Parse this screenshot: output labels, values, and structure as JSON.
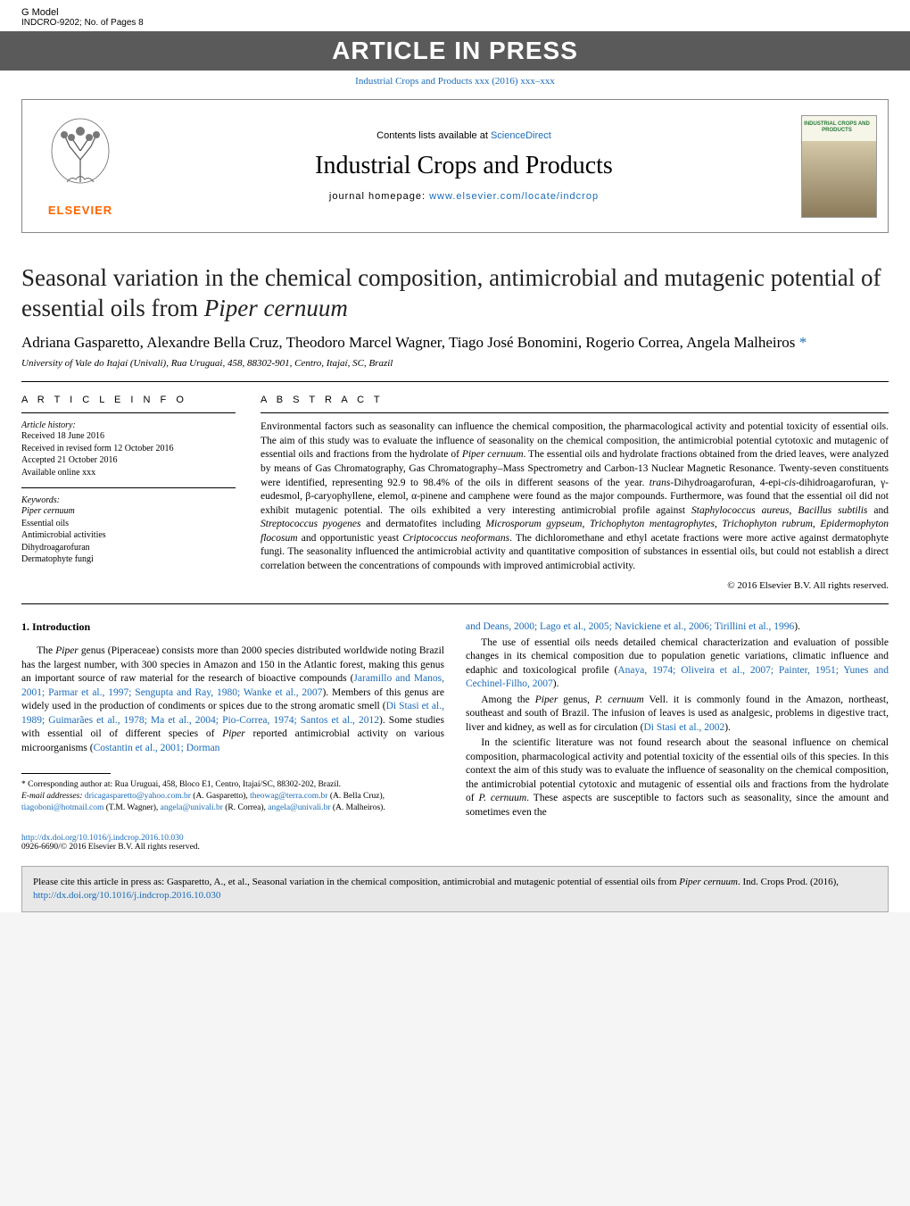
{
  "topbar": {
    "g_model": "G Model",
    "article_code": "INDCRO-9202; No. of Pages 8",
    "journal_ref": "Industrial Crops and Products xxx (2016) xxx–xxx"
  },
  "press_banner": "ARTICLE IN PRESS",
  "header": {
    "contents_prefix": "Contents lists available at ",
    "sciencedirect": "ScienceDirect",
    "journal_title": "Industrial Crops and Products",
    "homepage_prefix": "journal homepage: ",
    "homepage_url": "www.elsevier.com/locate/indcrop",
    "elsevier": "ELSEVIER",
    "cover_label": "INDUSTRIAL CROPS AND PRODUCTS"
  },
  "title": "Seasonal variation in the chemical composition, antimicrobial and mutagenic potential of essential oils from Piper cernuum",
  "title_italic": "Piper cernuum",
  "authors": "Adriana Gasparetto, Alexandre Bella Cruz, Theodoro Marcel Wagner, Tiago José Bonomini, Rogerio Correa, Angela Malheiros",
  "affiliation": "University of Vale do Itajaí (Univali), Rua Uruguai, 458, 88302-901, Centro, Itajaí, SC, Brazil",
  "article_info": {
    "heading": "A R T I C L E   I N F O",
    "history_label": "Article history:",
    "history": [
      "Received 18 June 2016",
      "Received in revised form 12 October 2016",
      "Accepted 21 October 2016",
      "Available online xxx"
    ],
    "keywords_label": "Keywords:",
    "keywords": [
      {
        "text": "Piper cernuum",
        "italic": true
      },
      {
        "text": "Essential oils",
        "italic": false
      },
      {
        "text": "Antimicrobial activities",
        "italic": false
      },
      {
        "text": "Dihydroagarofuran",
        "italic": false
      },
      {
        "text": "Dermatophyte fungi",
        "italic": false
      }
    ]
  },
  "abstract": {
    "heading": "A B S T R A C T",
    "text_parts": [
      {
        "t": "Environmental factors such as seasonality can influence the chemical composition, the pharmacological activity and potential toxicity of essential oils. The aim of this study was to evaluate the influence of seasonality on the chemical composition, the antimicrobial potential cytotoxic and mutagenic of essential oils and fractions from the hydrolate of ",
        "i": false
      },
      {
        "t": "Piper cernuum",
        "i": true
      },
      {
        "t": ". The essential oils and hydrolate fractions obtained from the dried leaves, were analyzed by means of Gas Chromatography, Gas Chromatography–Mass Spectrometry and Carbon-13 Nuclear Magnetic Resonance. Twenty-seven constituents were identified, representing 92.9 to 98.4% of the oils in different seasons of the year. ",
        "i": false
      },
      {
        "t": "trans",
        "i": true
      },
      {
        "t": "-Dihydroagarofuran, 4-epi-",
        "i": false
      },
      {
        "t": "cis",
        "i": true
      },
      {
        "t": "-dihidroagarofuran, γ-eudesmol, β-caryophyllene, elemol, α-pinene and camphene were found as the major compounds. Furthermore, was found that the essential oil did not exhibit mutagenic potential. The oils exhibited a very interesting antimicrobial profile against ",
        "i": false
      },
      {
        "t": "Staphylococcus aureus",
        "i": true
      },
      {
        "t": ", ",
        "i": false
      },
      {
        "t": "Bacillus subtilis",
        "i": true
      },
      {
        "t": " and ",
        "i": false
      },
      {
        "t": "Streptococcus pyogenes",
        "i": true
      },
      {
        "t": " and dermatofites including ",
        "i": false
      },
      {
        "t": "Microsporum gypseum",
        "i": true
      },
      {
        "t": ", ",
        "i": false
      },
      {
        "t": "Trichophyton mentagrophytes",
        "i": true
      },
      {
        "t": ", ",
        "i": false
      },
      {
        "t": "Trichophyton rubrum",
        "i": true
      },
      {
        "t": ", ",
        "i": false
      },
      {
        "t": "Epidermophyton flocosum",
        "i": true
      },
      {
        "t": " and opportunistic yeast ",
        "i": false
      },
      {
        "t": "Criptococcus neoformans",
        "i": true
      },
      {
        "t": ". The dichloromethane and ethyl acetate fractions were more active against dermatophyte fungi. The seasonality influenced the antimicrobial activity and quantitative composition of substances in essential oils, but could not establish a direct correlation between the concentrations of compounds with improved antimicrobial activity.",
        "i": false
      }
    ],
    "copyright": "© 2016 Elsevier B.V. All rights reserved."
  },
  "body": {
    "intro_heading": "1.  Introduction",
    "left_paras": [
      [
        {
          "t": "The ",
          "i": false,
          "l": false
        },
        {
          "t": "Piper",
          "i": true,
          "l": false
        },
        {
          "t": " genus (Piperaceae) consists more than 2000 species distributed worldwide noting Brazil has the largest number, with 300 species in Amazon and 150 in the Atlantic forest, making this genus an important source of raw material for the research of bioactive compounds (",
          "i": false,
          "l": false
        },
        {
          "t": "Jaramillo and Manos, 2001; Parmar et al., 1997; Sengupta and Ray, 1980; Wanke et al., 2007",
          "i": false,
          "l": true
        },
        {
          "t": "). Members of this genus are widely used in the production of condiments or spices due to the strong aromatic smell (",
          "i": false,
          "l": false
        },
        {
          "t": "Di Stasi et al., 1989; Guimarães et al., 1978; Ma et al., 2004; Pio-Correa, 1974; Santos et al., 2012",
          "i": false,
          "l": true
        },
        {
          "t": "). Some studies with essential oil of different species of ",
          "i": false,
          "l": false
        },
        {
          "t": "Piper",
          "i": true,
          "l": false
        },
        {
          "t": " reported antimicrobial activity on various microorganisms (",
          "i": false,
          "l": false
        },
        {
          "t": "Costantin et al., 2001; Dorman",
          "i": false,
          "l": true
        }
      ]
    ],
    "right_paras": [
      [
        {
          "t": "and Deans, 2000; Lago et al., 2005; Navickiene et al., 2006; Tirillini et al., 1996",
          "i": false,
          "l": true
        },
        {
          "t": ").",
          "i": false,
          "l": false
        }
      ],
      [
        {
          "t": "The use of essential oils needs detailed chemical characterization and evaluation of possible changes in its chemical composition due to population genetic variations, climatic influence and edaphic and toxicological profile (",
          "i": false,
          "l": false
        },
        {
          "t": "Anaya, 1974; Oliveira et al., 2007; Painter, 1951; Yunes and Cechinel-Filho, 2007",
          "i": false,
          "l": true
        },
        {
          "t": ").",
          "i": false,
          "l": false
        }
      ],
      [
        {
          "t": "Among the ",
          "i": false,
          "l": false
        },
        {
          "t": "Piper",
          "i": true,
          "l": false
        },
        {
          "t": " genus, ",
          "i": false,
          "l": false
        },
        {
          "t": "P. cernuum",
          "i": true,
          "l": false
        },
        {
          "t": " Vell. it is commonly found in the Amazon, northeast, southeast and south of Brazil. The infusion of leaves is used as analgesic, problems in digestive tract, liver and kidney, as well as for circulation (",
          "i": false,
          "l": false
        },
        {
          "t": "Di Stasi et al., 2002",
          "i": false,
          "l": true
        },
        {
          "t": ").",
          "i": false,
          "l": false
        }
      ],
      [
        {
          "t": "In the scientific literature was not found research about the seasonal influence on chemical composition, pharmacological activity and potential toxicity of the essential oils of this species. In this context the aim of this study was to evaluate the influence of seasonality on the chemical composition, the antimicrobial potential cytotoxic and mutagenic of essential oils and fractions from the hydrolate of ",
          "i": false,
          "l": false
        },
        {
          "t": "P. cernuum",
          "i": true,
          "l": false
        },
        {
          "t": ". These aspects are susceptible to factors such as seasonality, since the amount and sometimes even the",
          "i": false,
          "l": false
        }
      ]
    ]
  },
  "footnotes": {
    "corresponding": "* Corresponding author at: Rua Uruguai, 458, Bloco E1, Centro, Itajaí/SC, 88302-202, Brazil.",
    "emails_label": "E-mail addresses:",
    "emails": [
      {
        "email": "dricagasparetto@yahoo.com.br",
        "author": "(A. Gasparetto),"
      },
      {
        "email": "theowag@terra.com.br",
        "author": "(A. Bella Cruz),"
      },
      {
        "email": "tiagoboni@hotmail.com",
        "author": "(T.M. Wagner),"
      },
      {
        "email": "angela@univali.br",
        "author": "(R. Correa),"
      },
      {
        "email": "angela@univali.br",
        "author": "(A. Malheiros)."
      }
    ]
  },
  "doi": {
    "url": "http://dx.doi.org/10.1016/j.indcrop.2016.10.030",
    "issn": "0926-6690/© 2016 Elsevier B.V. All rights reserved."
  },
  "cite_box": {
    "prefix": "Please cite this article in press as: Gasparetto, A., et al., Seasonal variation in the chemical composition, antimicrobial and mutagenic potential of essential oils from ",
    "italic": "Piper cernuum",
    "suffix": ". Ind. Crops Prod. (2016), ",
    "url": "http://dx.doi.org/10.1016/j.indcrop.2016.10.030"
  },
  "colors": {
    "link": "#1a6bb8",
    "elsevier_orange": "#ff6600",
    "banner_gray": "#5a5a5a",
    "cite_bg": "#e8e8e8"
  }
}
